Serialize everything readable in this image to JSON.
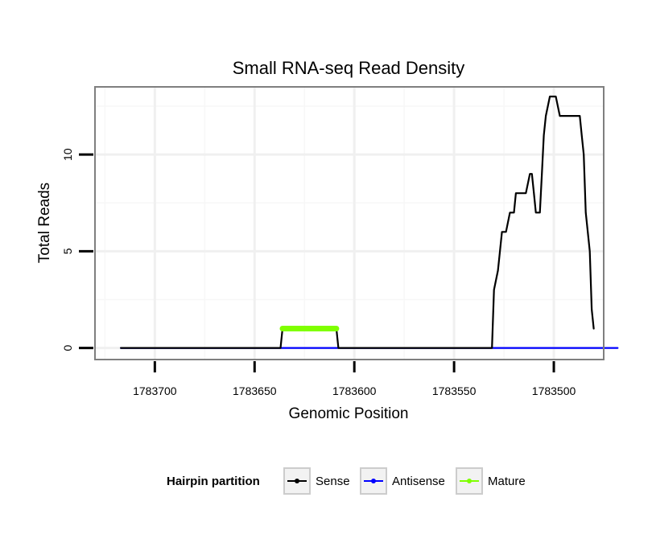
{
  "chart_data": {
    "type": "line",
    "title": "Small RNA-seq Read Density",
    "xlabel": "Genomic Position",
    "ylabel": "Total Reads",
    "xlim": [
      1783730,
      1783475
    ],
    "ylim": [
      -0.6,
      13.5
    ],
    "x_reversed": true,
    "grid": true,
    "x_ticks": [
      1783700,
      1783650,
      1783600,
      1783550,
      1783500
    ],
    "x_tick_labels": [
      "1783700",
      "1783650",
      "1783600",
      "1783550",
      "1783500"
    ],
    "y_ticks": [
      0,
      5,
      10
    ],
    "y_tick_labels": [
      "0",
      "5",
      "10"
    ],
    "y_minor_grid": [
      2.5,
      7.5,
      12.5
    ],
    "x_minor_grid": [
      1783725,
      1783675,
      1783625,
      1783575,
      1783525,
      1783475
    ],
    "legend": {
      "title": "Hairpin partition",
      "position": "bottom",
      "entries": [
        {
          "name": "Sense",
          "color": "#000000"
        },
        {
          "name": "Antisense",
          "color": "#0000ff"
        },
        {
          "name": "Mature",
          "color": "#7fff00"
        }
      ]
    },
    "series": [
      {
        "name": "Sense",
        "color": "#000000",
        "x": [
          1783717,
          1783637,
          1783636,
          1783609,
          1783608,
          1783531,
          1783530,
          1783528,
          1783527,
          1783526,
          1783525,
          1783524,
          1783522,
          1783521,
          1783520,
          1783519,
          1783518,
          1783517,
          1783516,
          1783515,
          1783514,
          1783512,
          1783511,
          1783510,
          1783509,
          1783508,
          1783507,
          1783506,
          1783505,
          1783504,
          1783502,
          1783501,
          1783500,
          1783499,
          1783497,
          1783496,
          1783490,
          1783487,
          1783486,
          1783485,
          1783484,
          1783483,
          1783482,
          1783481,
          1783480
        ],
        "y": [
          0,
          0,
          1,
          1,
          0,
          0,
          3,
          4,
          5,
          6,
          6,
          6,
          7,
          7,
          7,
          8,
          8,
          8,
          8,
          8,
          8,
          9,
          9,
          8,
          7,
          7,
          7,
          9,
          11,
          12,
          13,
          13,
          13,
          13,
          12,
          12,
          12,
          12,
          11,
          10,
          7,
          6,
          5,
          2,
          1
        ]
      },
      {
        "name": "Antisense",
        "color": "#0000ff",
        "x": [
          1783717,
          1783468
        ],
        "y": [
          0,
          0
        ]
      },
      {
        "name": "Mature",
        "color": "#7fff00",
        "x": [
          1783636,
          1783609
        ],
        "y": [
          1,
          1
        ]
      }
    ]
  }
}
